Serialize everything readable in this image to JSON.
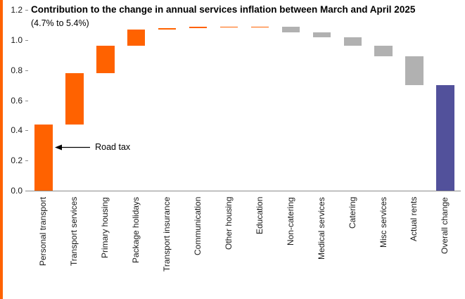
{
  "accent": {
    "brand_orange": "#FF6200",
    "bar_gray": "#B1B1B1",
    "bar_indigo": "#52519B",
    "axis_gray": "#8C8C8C",
    "text_black": "#1A1A1A"
  },
  "title": "Contribution to the change in annual services inflation between March and April 2025",
  "subtitle": "(4.7% to 5.4%)",
  "annotation": {
    "label": "Road tax"
  },
  "chart_data": {
    "type": "bar",
    "subtype": "waterfall",
    "title": "Contribution to the change in annual services inflation between March and April 2025",
    "subtitle": "(4.7% to 5.4%)",
    "xlabel": "",
    "ylabel": "",
    "ylim": [
      0,
      1.2
    ],
    "yticks": [
      0.0,
      0.2,
      0.4,
      0.6,
      0.8,
      1.0,
      1.2
    ],
    "grid": false,
    "legend": "none",
    "annotation": {
      "text": "Road tax",
      "points_to": "Personal transport"
    },
    "colors": {
      "increase": "#FF6200",
      "decrease": "#B1B1B1",
      "total": "#52519B"
    },
    "categories": [
      "Personal transport",
      "Transport services",
      "Primary housing",
      "Package holidays",
      "Transport insurance",
      "Communication",
      "Other housing",
      "Education",
      "Non-catering",
      "Medical services",
      "Catering",
      "Misc services",
      "Actual rents",
      "Overall change"
    ],
    "bars": [
      {
        "label": "Personal transport",
        "start": 0.0,
        "end": 0.44,
        "delta": 0.44,
        "type": "increase"
      },
      {
        "label": "Transport services",
        "start": 0.44,
        "end": 0.78,
        "delta": 0.34,
        "type": "increase"
      },
      {
        "label": "Primary housing",
        "start": 0.78,
        "end": 0.96,
        "delta": 0.18,
        "type": "increase"
      },
      {
        "label": "Package holidays",
        "start": 0.96,
        "end": 1.07,
        "delta": 0.11,
        "type": "increase"
      },
      {
        "label": "Transport insurance",
        "start": 1.07,
        "end": 1.08,
        "delta": 0.01,
        "type": "increase"
      },
      {
        "label": "Communication",
        "start": 1.08,
        "end": 1.09,
        "delta": 0.01,
        "type": "increase"
      },
      {
        "label": "Other housing",
        "start": 1.09,
        "end": 1.09,
        "delta": 0.0,
        "type": "increase"
      },
      {
        "label": "Education",
        "start": 1.09,
        "end": 1.09,
        "delta": 0.0,
        "type": "increase"
      },
      {
        "label": "Non-catering",
        "start": 1.09,
        "end": 1.05,
        "delta": -0.04,
        "type": "decrease"
      },
      {
        "label": "Medical services",
        "start": 1.05,
        "end": 1.02,
        "delta": -0.03,
        "type": "decrease"
      },
      {
        "label": "Catering",
        "start": 1.02,
        "end": 0.96,
        "delta": -0.06,
        "type": "decrease"
      },
      {
        "label": "Misc services",
        "start": 0.96,
        "end": 0.89,
        "delta": -0.07,
        "type": "decrease"
      },
      {
        "label": "Actual rents",
        "start": 0.89,
        "end": 0.7,
        "delta": -0.19,
        "type": "decrease"
      },
      {
        "label": "Overall change",
        "start": 0.0,
        "end": 0.7,
        "delta": 0.7,
        "type": "total"
      }
    ]
  }
}
